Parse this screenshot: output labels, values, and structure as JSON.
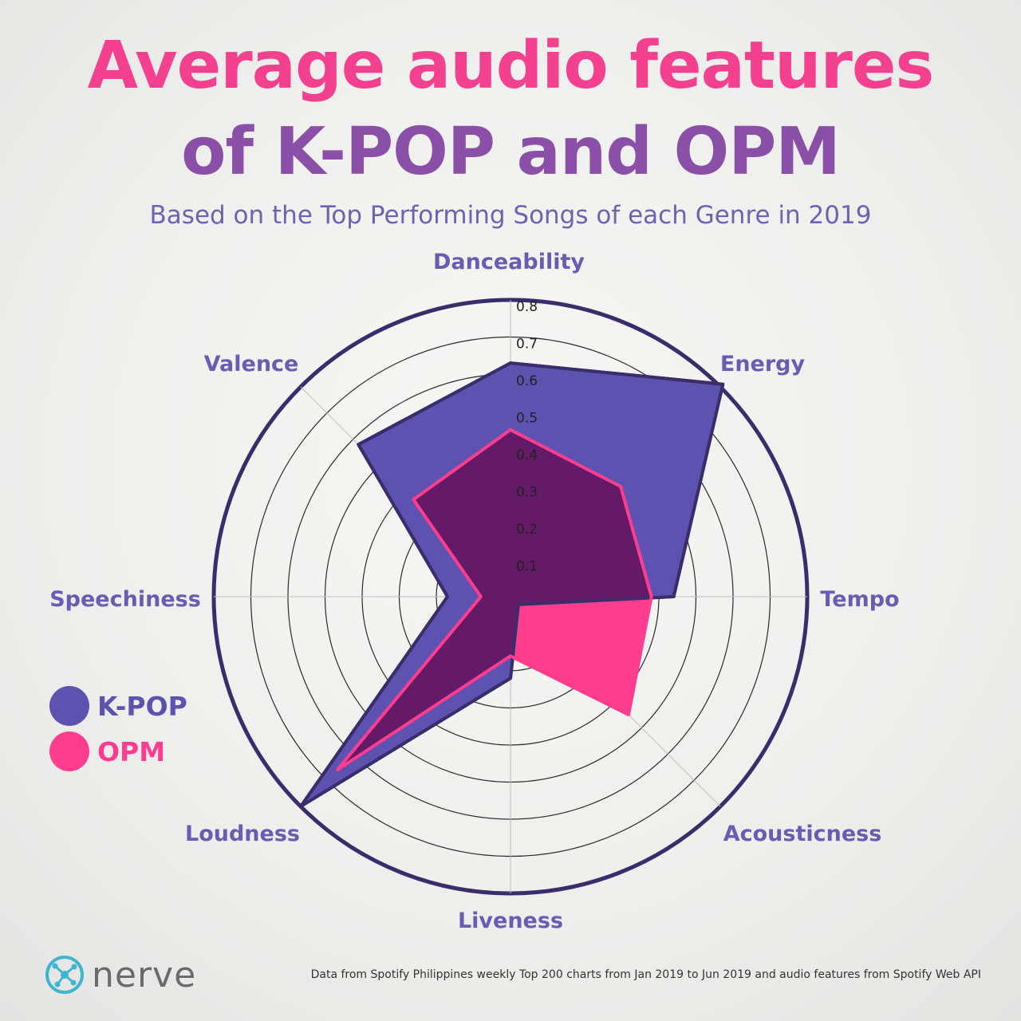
{
  "title_line1": "Average audio features",
  "title_line2": "of K-POP and OPM",
  "subtitle": "Based on the Top Performing Songs of each Genre in 2019",
  "legend": [
    {
      "label": "K-POP",
      "color": "#5e52b0"
    },
    {
      "label": "OPM",
      "color": "#ff3d8f"
    }
  ],
  "logo": {
    "text": "nerve",
    "icon": "nerve-network-icon"
  },
  "source_note": "Data from Spotify Philippines weekly Top 200 charts from Jan 2019 to Jun 2019 and audio features from Spotify Web API",
  "colors": {
    "title_pink": "#f4418f",
    "title_purple": "#8a4fa6",
    "outline": "#3b2d6b",
    "kpop_fill": "#5e52b0",
    "opm_fill": "#ff3d8f",
    "overlap": "#641a66"
  },
  "chart_data": {
    "type": "radar",
    "axes": [
      "Danceability",
      "Energy",
      "Tempo",
      "Acousticness",
      "Liveness",
      "Loudness",
      "Speechiness",
      "Valence"
    ],
    "rlim": [
      0,
      0.8
    ],
    "ticks": [
      0.1,
      0.2,
      0.3,
      0.4,
      0.5,
      0.6,
      0.7,
      0.8
    ],
    "tick_labels": [
      "0.1",
      "0.2",
      "0.3",
      "0.4",
      "0.5",
      "0.6",
      "0.7",
      "0.8"
    ],
    "series": [
      {
        "name": "K-POP",
        "values": [
          0.63,
          0.81,
          0.44,
          0.03,
          0.22,
          0.8,
          0.17,
          0.58
        ]
      },
      {
        "name": "OPM",
        "values": [
          0.45,
          0.42,
          0.38,
          0.45,
          0.16,
          0.66,
          0.08,
          0.37
        ]
      }
    ]
  }
}
